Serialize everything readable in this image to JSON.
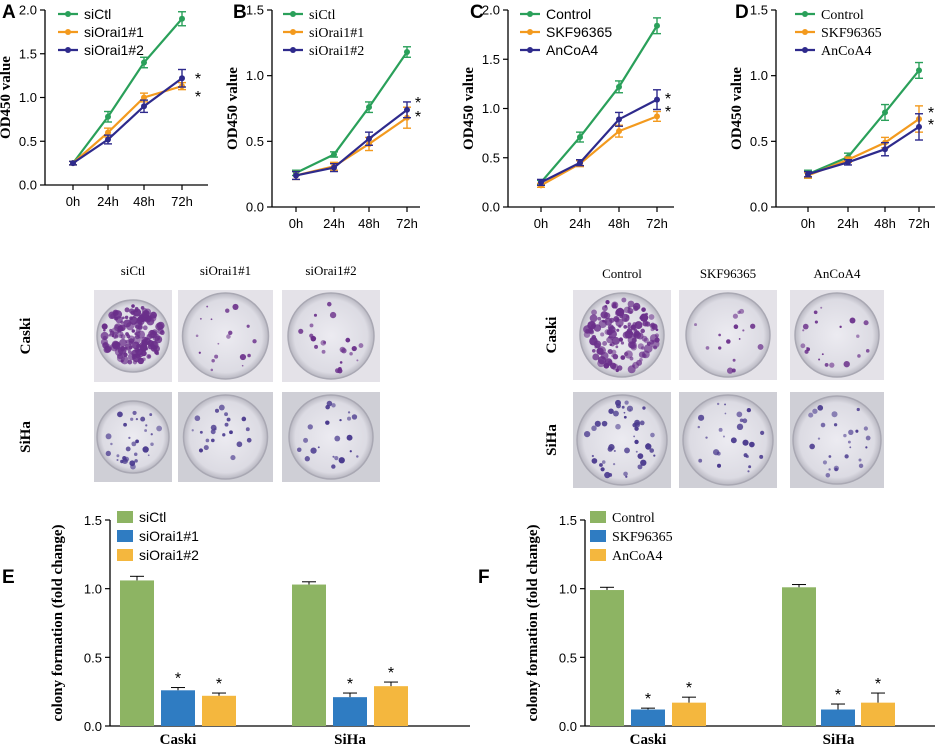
{
  "colors": {
    "green": "#2aa05a",
    "orange": "#f39a1e",
    "navy": "#2e2a8c",
    "bar_green": "#8db463",
    "bar_blue": "#2f7cc2",
    "bar_yellow": "#f4b73e",
    "crystal_violet": "#6a2f8a",
    "plate_bg": "#e9e6ee"
  },
  "chart_data": [
    {
      "panel": "A",
      "type": "line",
      "x": [
        "0h",
        "24h",
        "48h",
        "72h"
      ],
      "ylabel": "OD450 value",
      "ylim": [
        0.0,
        2.0
      ],
      "yticks": [
        "0.0",
        "0.5",
        "1.0",
        "1.5",
        "2.0"
      ],
      "series": [
        {
          "name": "siCtl",
          "color": "green",
          "values": [
            0.25,
            0.78,
            1.4,
            1.9
          ],
          "errors": [
            0.02,
            0.06,
            0.06,
            0.08
          ]
        },
        {
          "name": "siOrai1#1",
          "color": "orange",
          "values": [
            0.25,
            0.6,
            1.0,
            1.13
          ],
          "errors": [
            0.02,
            0.05,
            0.05,
            0.04
          ]
        },
        {
          "name": "siOrai1#2",
          "color": "navy",
          "values": [
            0.25,
            0.52,
            0.9,
            1.22
          ],
          "errors": [
            0.02,
            0.05,
            0.07,
            0.1
          ]
        }
      ],
      "annotations": [
        "*",
        "*"
      ]
    },
    {
      "panel": "B",
      "type": "line",
      "x": [
        "0h",
        "24h",
        "48h",
        "72h"
      ],
      "ylabel": "OD450 value",
      "ylim": [
        0.0,
        1.5
      ],
      "yticks": [
        "0.0",
        "0.5",
        "1.0",
        "1.5"
      ],
      "series": [
        {
          "name": "siCtl",
          "color": "green",
          "values": [
            0.26,
            0.4,
            0.76,
            1.18
          ],
          "errors": [
            0.02,
            0.02,
            0.04,
            0.04
          ]
        },
        {
          "name": "siOrai1#1",
          "color": "orange",
          "values": [
            0.24,
            0.31,
            0.48,
            0.68
          ],
          "errors": [
            0.03,
            0.03,
            0.05,
            0.08
          ]
        },
        {
          "name": "siOrai1#2",
          "color": "navy",
          "values": [
            0.24,
            0.3,
            0.52,
            0.74
          ],
          "errors": [
            0.03,
            0.03,
            0.05,
            0.06
          ]
        }
      ],
      "annotations": [
        "*",
        "*"
      ]
    },
    {
      "panel": "C",
      "type": "line",
      "x": [
        "0h",
        "24h",
        "48h",
        "72h"
      ],
      "ylabel": "OD450 value",
      "ylim": [
        0.0,
        2.0
      ],
      "yticks": [
        "0.0",
        "0.5",
        "1.0",
        "1.5",
        "2.0"
      ],
      "series": [
        {
          "name": "Control",
          "color": "green",
          "values": [
            0.25,
            0.71,
            1.22,
            1.84
          ],
          "errors": [
            0.02,
            0.05,
            0.06,
            0.08
          ]
        },
        {
          "name": "SKF96365",
          "color": "orange",
          "values": [
            0.22,
            0.44,
            0.77,
            0.92
          ],
          "errors": [
            0.02,
            0.03,
            0.06,
            0.05
          ]
        },
        {
          "name": "AnCoA4",
          "color": "navy",
          "values": [
            0.25,
            0.45,
            0.89,
            1.09
          ],
          "errors": [
            0.03,
            0.03,
            0.07,
            0.1
          ]
        }
      ],
      "annotations": [
        "*",
        "*"
      ]
    },
    {
      "panel": "D",
      "type": "line",
      "x": [
        "0h",
        "24h",
        "48h",
        "72h"
      ],
      "ylabel": "OD450 value",
      "ylim": [
        0.0,
        1.5
      ],
      "yticks": [
        "0.0",
        "0.5",
        "1.0",
        "1.5"
      ],
      "series": [
        {
          "name": "Control",
          "color": "green",
          "values": [
            0.25,
            0.38,
            0.72,
            1.04
          ],
          "errors": [
            0.03,
            0.03,
            0.06,
            0.06
          ]
        },
        {
          "name": "SKF96365",
          "color": "orange",
          "values": [
            0.24,
            0.36,
            0.49,
            0.67
          ],
          "errors": [
            0.02,
            0.02,
            0.04,
            0.1
          ]
        },
        {
          "name": "AnCoA4",
          "color": "navy",
          "values": [
            0.25,
            0.34,
            0.44,
            0.61
          ],
          "errors": [
            0.02,
            0.02,
            0.05,
            0.1
          ]
        }
      ],
      "annotations": [
        "*",
        "*"
      ]
    },
    {
      "panel": "E",
      "type": "bar",
      "categories": [
        "Caski",
        "SiHa"
      ],
      "ylabel": "colony formation (fold change)",
      "ylim": [
        0.0,
        1.5
      ],
      "yticks": [
        "0.0",
        "0.5",
        "1.0",
        "1.5"
      ],
      "series": [
        {
          "name": "siCtl",
          "color": "bar_green",
          "values": [
            1.06,
            1.03
          ],
          "errors": [
            0.03,
            0.02
          ],
          "sig": [
            "",
            ""
          ]
        },
        {
          "name": "siOrai1#1",
          "color": "bar_blue",
          "values": [
            0.26,
            0.21
          ],
          "errors": [
            0.02,
            0.03
          ],
          "sig": [
            "*",
            "*"
          ]
        },
        {
          "name": "siOrai1#2",
          "color": "bar_yellow",
          "values": [
            0.22,
            0.29
          ],
          "errors": [
            0.02,
            0.03
          ],
          "sig": [
            "*",
            "*"
          ]
        }
      ]
    },
    {
      "panel": "F",
      "type": "bar",
      "categories": [
        "Caski",
        "SiHa"
      ],
      "ylabel": "colony formation (fold change)",
      "ylim": [
        0.0,
        1.5
      ],
      "yticks": [
        "0.0",
        "0.5",
        "1.0",
        "1.5"
      ],
      "series": [
        {
          "name": "Control",
          "color": "bar_green",
          "values": [
            0.99,
            1.01
          ],
          "errors": [
            0.02,
            0.02
          ],
          "sig": [
            "",
            ""
          ]
        },
        {
          "name": "SKF96365",
          "color": "bar_blue",
          "values": [
            0.12,
            0.12
          ],
          "errors": [
            0.01,
            0.04
          ],
          "sig": [
            "*",
            "*"
          ]
        },
        {
          "name": "AnCoA4",
          "color": "bar_yellow",
          "values": [
            0.17,
            0.17
          ],
          "errors": [
            0.04,
            0.07
          ],
          "sig": [
            "*",
            "*"
          ]
        }
      ]
    }
  ],
  "plates": [
    {
      "panel": "E",
      "columns": [
        "siCtl",
        "siOrai1#1",
        "siOrai1#2"
      ],
      "rows": [
        "Caski",
        "SiHa"
      ]
    },
    {
      "panel": "F",
      "columns": [
        "Control",
        "SKF96365",
        "AnCoA4"
      ],
      "rows": [
        "Caski",
        "SiHa"
      ]
    }
  ]
}
